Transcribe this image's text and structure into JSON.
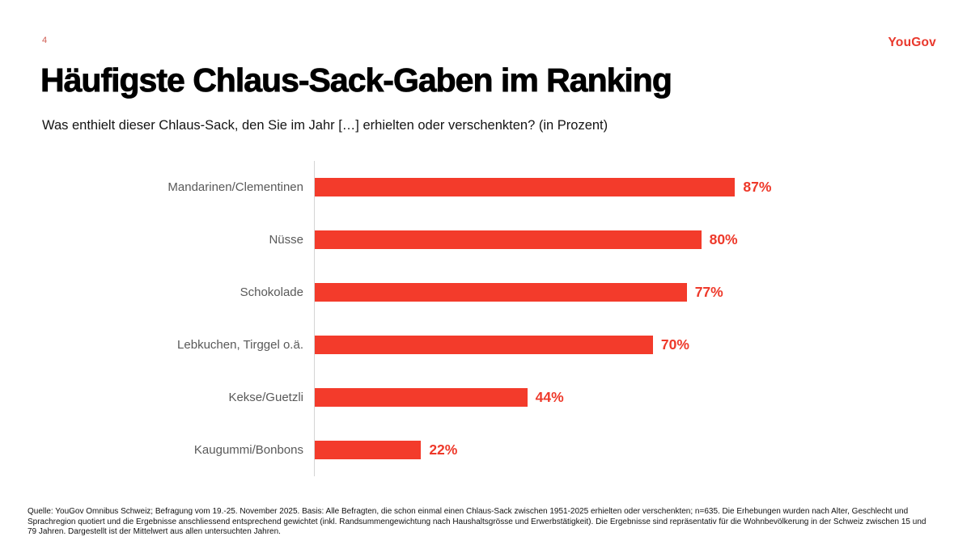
{
  "page": {
    "number": "4",
    "logo": "YouGov",
    "title": "Häufigste Chlaus-Sack-Gaben im Ranking",
    "subtitle": "Was enthielt dieser Chlaus-Sack, den Sie im Jahr […] erhielten oder verschenkten? (in Prozent)"
  },
  "chart_data": {
    "type": "bar",
    "orientation": "horizontal",
    "title": "Häufigste Chlaus-Sack-Gaben im Ranking",
    "subtitle": "Was enthielt dieser Chlaus-Sack, den Sie im Jahr […] erhielten oder verschenkten? (in Prozent)",
    "categories": [
      "Mandarinen/Clementinen",
      "Nüsse",
      "Schokolade",
      "Lebkuchen, Tirggel o.ä.",
      "Kekse/Guetzli",
      "Kaugummi/Bonbons"
    ],
    "values": [
      87,
      80,
      77,
      70,
      44,
      22
    ],
    "value_suffix": "%",
    "unit": "Prozent",
    "xlim": [
      0,
      100
    ],
    "grid": false,
    "data_labels": true,
    "bar_color": "#f33b2b",
    "value_label_color": "#ee392a",
    "category_label_color": "#595959",
    "axis_line_color": "#d4d4d4"
  },
  "footer": {
    "lines": [
      "Quelle: YouGov Omnibus Schweiz; Befragung vom 19.-25. November 2025. Basis: Alle Befragten, die schon einmal einen Chlaus-Sack zwischen 1951-2025 erhielten oder verschenkten; n=635. Die Erhebungen wurden nach Alter, Geschlecht und",
      "Sprachregion quotiert und die Ergebnisse anschliessend entsprechend gewichtet (inkl. Randsummengewichtung nach Haushaltsgrösse und Erwerbstätigkeit). Die Ergebnisse sind repräsentativ für die Wohnbevölkerung in der Schweiz zwischen 15 und",
      "79 Jahren. Dargestellt ist der Mittelwert aus allen untersuchten Jahren."
    ]
  },
  "colors": {
    "accent": "#f33b2b",
    "logo_red": "#e9382c",
    "page_number_red": "#cf5a50",
    "text_black": "#000000",
    "label_gray": "#595959",
    "axis_gray": "#d4d4d4"
  }
}
